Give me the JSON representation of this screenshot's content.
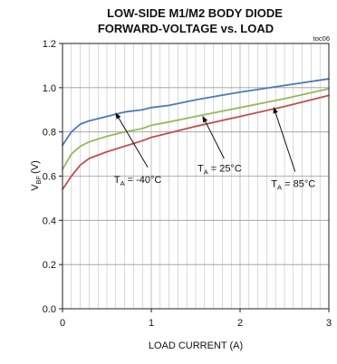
{
  "chart_data": {
    "type": "line",
    "title_line1": "LOW-SIDE M1/M2 BODY DIODE",
    "title_line2": "FORWARD-VOLTAGE vs. LOAD",
    "tag": "toc06",
    "xlabel": "LOAD CURRENT (A)",
    "ylabel_main": "V",
    "ylabel_sub": "BF",
    "ylabel_unit": "(V)",
    "xlim": [
      0,
      3
    ],
    "ylim": [
      0,
      1.2
    ],
    "x_ticks": [
      0,
      1,
      2,
      3
    ],
    "x_tick_labels": [
      "0",
      "1",
      "2",
      "3"
    ],
    "y_ticks": [
      0,
      0.2,
      0.4,
      0.6,
      0.8,
      1.0,
      1.2
    ],
    "y_tick_labels": [
      "0.0",
      "0.2",
      "0.4",
      "0.6",
      "0.8",
      "1.0",
      "1.2"
    ],
    "grid": true,
    "series": [
      {
        "name": "TA = -40°C",
        "color": "#4a7bb7",
        "x": [
          0,
          0.1,
          0.2,
          0.3,
          0.5,
          0.7,
          0.9,
          1.0,
          1.2,
          1.5,
          2.0,
          2.5,
          3.0
        ],
        "y": [
          0.74,
          0.8,
          0.835,
          0.85,
          0.87,
          0.89,
          0.9,
          0.91,
          0.92,
          0.945,
          0.98,
          1.01,
          1.04
        ]
      },
      {
        "name": "TA = 25°C",
        "color": "#95ba5a",
        "x": [
          0,
          0.1,
          0.2,
          0.3,
          0.5,
          0.7,
          0.9,
          1.0,
          1.2,
          1.5,
          2.0,
          2.5,
          3.0
        ],
        "y": [
          0.63,
          0.7,
          0.735,
          0.755,
          0.78,
          0.8,
          0.815,
          0.83,
          0.845,
          0.87,
          0.91,
          0.95,
          0.995
        ]
      },
      {
        "name": "TA = 85°C",
        "color": "#c0504d",
        "x": [
          0,
          0.1,
          0.2,
          0.3,
          0.5,
          0.7,
          0.9,
          1.0,
          1.2,
          1.5,
          2.0,
          2.5,
          3.0
        ],
        "y": [
          0.54,
          0.6,
          0.65,
          0.68,
          0.71,
          0.735,
          0.76,
          0.775,
          0.795,
          0.825,
          0.87,
          0.915,
          0.965
        ]
      }
    ],
    "annotations": [
      {
        "series": "TA = -40°C",
        "label_main": "T",
        "label_sub": "A",
        "label_rest": " = -40°C",
        "text_at": [
          0.58,
          0.57
        ],
        "arrow_from": [
          0.96,
          0.64
        ],
        "arrow_to": [
          0.6,
          0.885
        ]
      },
      {
        "series": "TA = 25°C",
        "label_main": "T",
        "label_sub": "A",
        "label_rest": " = 25°C",
        "text_at": [
          1.52,
          0.62
        ],
        "arrow_from": [
          1.82,
          0.68
        ],
        "arrow_to": [
          1.58,
          0.87
        ]
      },
      {
        "series": "TA = 85°C",
        "label_main": "T",
        "label_sub": "A",
        "label_rest": " = 85°C",
        "text_at": [
          2.35,
          0.55
        ],
        "arrow_from": [
          2.62,
          0.62
        ],
        "arrow_to": [
          2.38,
          0.91
        ]
      }
    ]
  }
}
